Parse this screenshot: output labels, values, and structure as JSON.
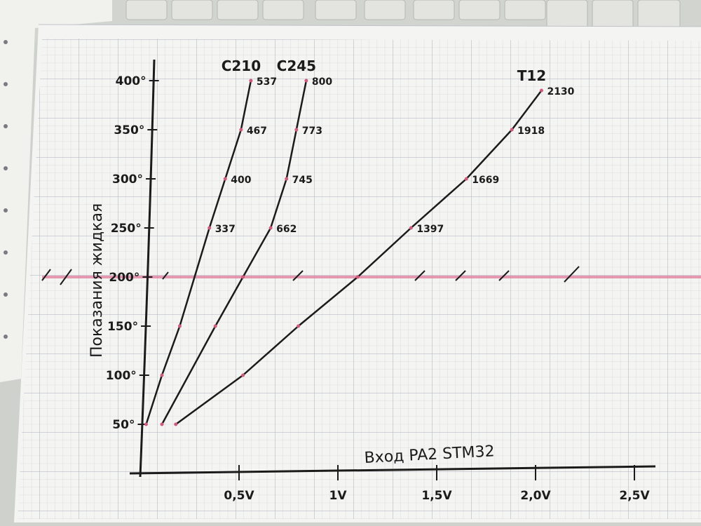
{
  "chart_data": {
    "type": "line",
    "xlabel": "Вход PA2 STM32",
    "ylabel": "Показания жидкая",
    "x_ticks": [
      "0,5V",
      "1V",
      "1,5V",
      "2,0V",
      "2,5V"
    ],
    "y_ticks": [
      "50°",
      "100°",
      "150°",
      "200°",
      "250°",
      "300°",
      "350°",
      "400°"
    ],
    "xlim": [
      0,
      2.6
    ],
    "ylim": [
      0,
      420
    ],
    "reference_line_y": 200,
    "reference_line_color": "#e07a9a",
    "ink_color": "#1b1b1b",
    "series": [
      {
        "name": "C210",
        "x": [
          0.03,
          0.11,
          0.2,
          0.35,
          0.43,
          0.51,
          0.56
        ],
        "y": [
          50,
          100,
          150,
          250,
          300,
          350,
          400
        ],
        "point_labels": [
          "",
          "",
          "",
          "337",
          "400",
          "467",
          "537"
        ]
      },
      {
        "name": "C245",
        "x": [
          0.11,
          0.38,
          0.52,
          0.66,
          0.74,
          0.79,
          0.84
        ],
        "y": [
          50,
          150,
          200,
          250,
          300,
          350,
          400
        ],
        "point_labels": [
          "",
          "",
          "",
          "662",
          "745",
          "773",
          "800"
        ]
      },
      {
        "name": "T12",
        "x": [
          0.18,
          0.52,
          0.8,
          1.1,
          1.37,
          1.65,
          1.88,
          2.03
        ],
        "y": [
          50,
          100,
          150,
          200,
          250,
          300,
          350,
          390
        ],
        "point_labels": [
          "",
          "",
          "",
          "",
          "1397",
          "1669",
          "1918",
          "2130"
        ]
      }
    ]
  }
}
